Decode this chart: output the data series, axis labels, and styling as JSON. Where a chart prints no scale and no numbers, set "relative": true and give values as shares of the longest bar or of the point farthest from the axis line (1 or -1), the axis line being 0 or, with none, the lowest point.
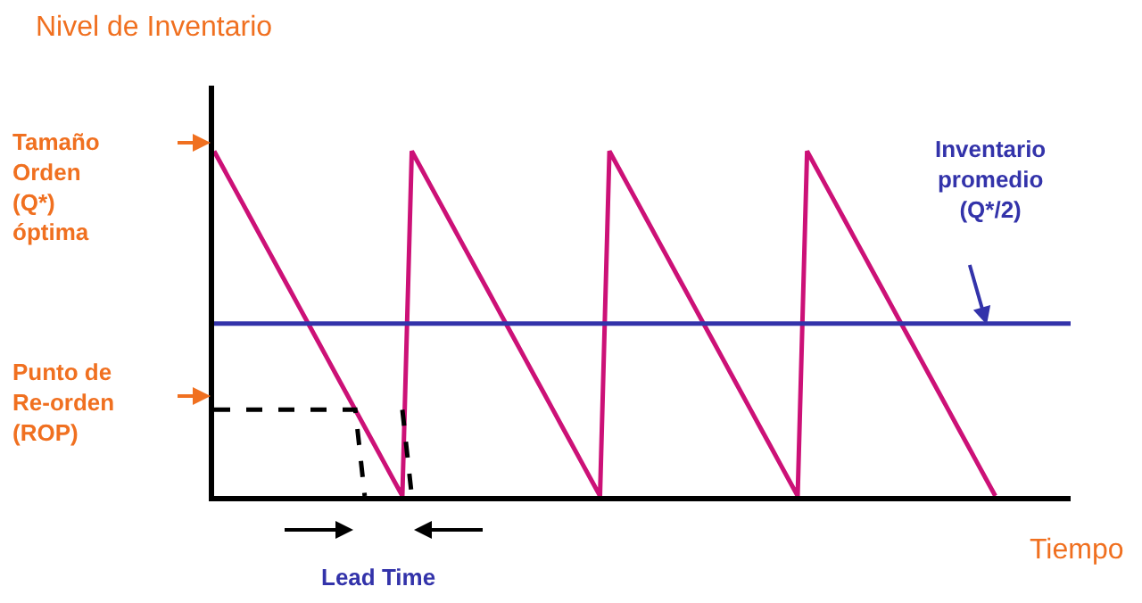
{
  "chart_data": {
    "type": "line",
    "relative": true,
    "xlabel": "Tiempo",
    "ylabel": "Nivel de Inventario",
    "annotations": [
      "Tamaño\nOrden\n(Q*)\nóptima",
      "Punto de\nRe-orden\n(ROP)",
      "Inventario\npromedio\n(Q*/2)",
      "Lead Time"
    ],
    "categories": [
      null,
      null,
      null,
      null,
      null,
      null,
      null,
      null,
      null,
      null,
      null,
      null,
      null,
      null,
      null,
      null,
      null,
      null,
      null,
      null,
      null,
      null,
      null,
      null,
      null,
      null,
      null,
      null,
      null,
      null,
      null,
      null,
      null,
      null,
      null,
      null,
      null,
      null,
      null,
      null,
      null,
      null,
      null,
      null,
      null,
      null,
      null,
      null,
      null,
      null,
      null,
      null,
      null,
      null,
      null,
      null,
      null,
      null,
      null,
      null,
      null,
      null,
      null,
      null,
      null,
      null,
      null,
      null,
      null,
      null,
      null,
      null,
      null,
      null,
      null,
      null,
      null,
      null,
      null,
      null,
      null,
      null,
      null,
      null,
      null,
      null,
      null,
      null,
      null,
      null,
      null,
      null
    ],
    "series": [
      {
        "color": "#cc1177",
        "values": [
          1,
          0.95,
          0.9,
          0.85,
          0.8,
          0.75,
          0.7,
          0.65,
          0.6,
          0.55,
          0.5,
          0.45,
          0.4,
          0.35,
          0.3,
          0.25,
          0.2,
          0.15,
          0.1,
          0.05,
          0,
          1,
          0.95,
          0.9,
          0.85,
          0.8,
          0.75,
          0.7,
          0.65,
          0.6,
          0.55,
          0.5,
          0.45,
          0.4,
          0.35,
          0.3,
          0.25,
          0.2,
          0.15,
          0.1,
          0.05,
          0,
          1,
          0.95,
          0.9,
          0.85,
          0.8,
          0.75,
          0.7,
          0.65,
          0.6,
          0.55,
          0.5,
          0.45,
          0.4,
          0.35,
          0.3,
          0.25,
          0.2,
          0.15,
          0.1,
          0.05,
          0,
          1,
          0.95,
          0.9,
          0.85,
          0.8,
          0.75,
          0.7,
          0.65,
          0.6,
          0.55,
          0.5,
          0.45,
          0.4,
          0.35,
          0.3,
          0.25,
          0.2,
          0.15,
          0.1,
          0.05,
          0,
          null,
          null,
          null,
          null,
          null,
          null,
          null,
          null
        ]
      },
      {
        "color": "#3333aa",
        "values": [
          0.5,
          0.5,
          0.5,
          0.5,
          0.5,
          0.5,
          0.5,
          0.5,
          0.5,
          0.5,
          0.5,
          0.5,
          0.5,
          0.5,
          0.5,
          0.5,
          0.5,
          0.5,
          0.5,
          0.5,
          0.5,
          0.5,
          0.5,
          0.5,
          0.5,
          0.5,
          0.5,
          0.5,
          0.5,
          0.5,
          0.5,
          0.5,
          0.5,
          0.5,
          0.5,
          0.5,
          0.5,
          0.5,
          0.5,
          0.5,
          0.5,
          0.5,
          0.5,
          0.5,
          0.5,
          0.5,
          0.5,
          0.5,
          0.5,
          0.5,
          0.5,
          0.5,
          0.5,
          0.5,
          0.5,
          0.5,
          0.5,
          0.5,
          0.5,
          0.5,
          0.5,
          0.5,
          0.5,
          0.5,
          0.5,
          0.5,
          0.5,
          0.5,
          0.5,
          0.5,
          0.5,
          0.5,
          0.5,
          0.5,
          0.5,
          0.5,
          0.5,
          0.5,
          0.5,
          0.5,
          0.5,
          0.5,
          0.5,
          0.5,
          0.5,
          0.5,
          0.5,
          0.5,
          0.5,
          0.5,
          0.5,
          0.5
        ]
      },
      {
        "color": "#000000",
        "line_style": "dashed",
        "values": [
          0.25,
          0.25,
          0.25,
          0.25,
          0.25,
          0.25,
          0.25,
          0.25,
          0.25,
          0.25,
          0.25,
          0.25,
          0.25,
          0.25,
          0.25,
          0.25,
          0,
          null,
          null,
          null,
          null,
          null,
          null,
          null,
          null,
          null,
          null,
          null,
          null,
          null,
          null,
          null,
          null,
          null,
          null,
          null,
          null,
          null,
          null,
          null,
          null,
          null,
          null,
          null,
          null,
          null,
          null,
          null,
          null,
          null,
          null,
          null,
          null,
          null,
          null,
          null,
          null,
          null,
          null,
          null,
          null,
          null,
          null,
          null,
          null,
          null,
          null,
          null,
          null,
          null,
          null,
          null,
          null,
          null,
          null,
          null,
          null,
          null,
          null,
          null,
          null,
          null,
          null,
          null,
          null,
          null,
          null,
          null,
          null,
          null,
          null,
          null
        ]
      },
      {
        "color": "#000000",
        "line_style": "dashed",
        "values": [
          null,
          null,
          null,
          null,
          null,
          null,
          null,
          null,
          null,
          null,
          null,
          null,
          null,
          null,
          null,
          null,
          null,
          null,
          null,
          null,
          0.25,
          0,
          null,
          null,
          null,
          null,
          null,
          null,
          null,
          null,
          null,
          null,
          null,
          null,
          null,
          null,
          null,
          null,
          null,
          null,
          null,
          null,
          null,
          null,
          null,
          null,
          null,
          null,
          null,
          null,
          null,
          null,
          null,
          null,
          null,
          null,
          null,
          null,
          null,
          null,
          null,
          null,
          null,
          null,
          null,
          null,
          null,
          null,
          null,
          null,
          null,
          null,
          null,
          null,
          null,
          null,
          null,
          null,
          null,
          null,
          null,
          null,
          null,
          null,
          null,
          null,
          null,
          null,
          null,
          null,
          null,
          null
        ]
      }
    ]
  }
}
